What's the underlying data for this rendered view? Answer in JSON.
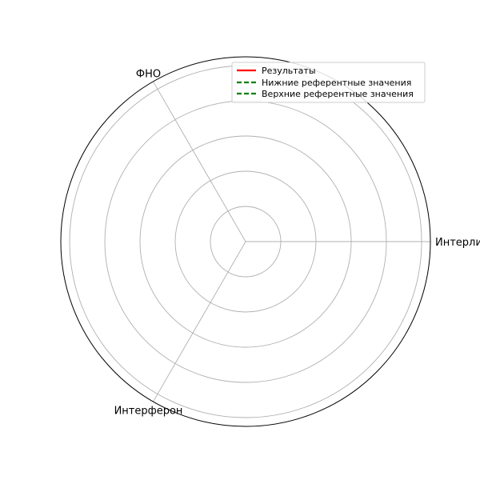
{
  "chart_data": {
    "type": "radar",
    "categories": [
      "Интерликин",
      "ФНО",
      "Интерферон"
    ],
    "series": [
      {
        "name": "Результаты",
        "values": [
          0,
          0,
          0
        ],
        "color": "#ff0000",
        "style": "solid"
      },
      {
        "name": "Нижние референтные значения",
        "values": [
          0,
          0,
          0
        ],
        "color": "#008000",
        "style": "dashed"
      },
      {
        "name": "Верхние референтные значения",
        "values": [
          0,
          0,
          0
        ],
        "color": "#008000",
        "style": "dashed"
      }
    ],
    "rlim": [
      0,
      1
    ],
    "radial_ticks": [
      0.2,
      0.4,
      0.6,
      0.8,
      1.0
    ],
    "show_radial_tick_labels": false,
    "grid": true,
    "legend_position": "top-right",
    "grid_color": "#b0b0b0",
    "frame_color": "#000000"
  }
}
